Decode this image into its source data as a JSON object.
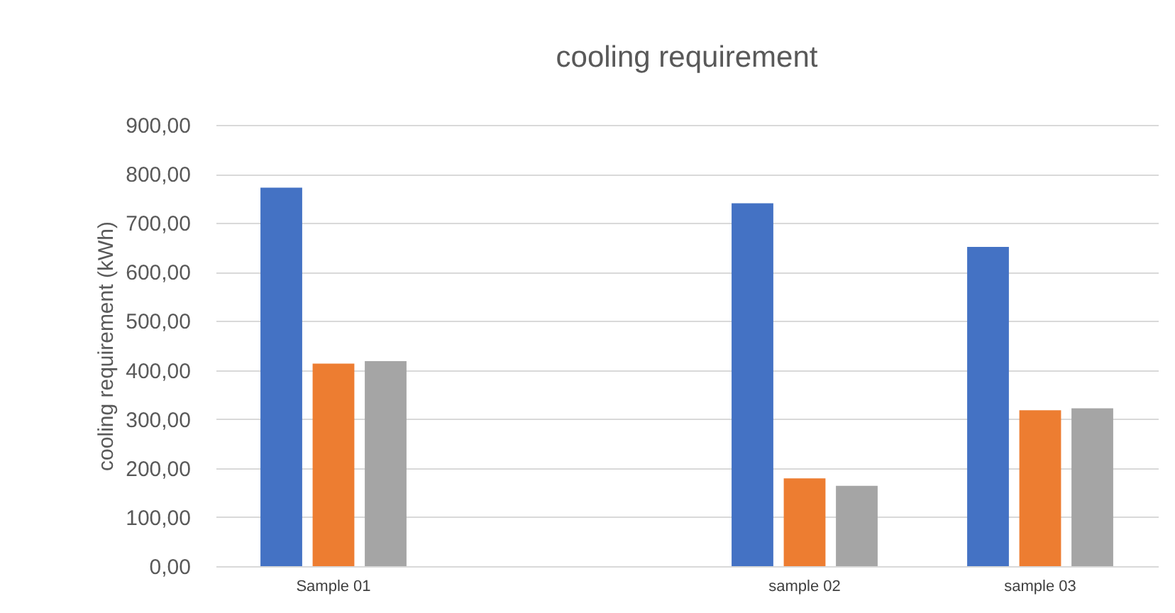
{
  "chart_data": {
    "type": "bar",
    "title": "cooling requirement",
    "ylabel": "cooling requirement  (kWh)",
    "categories": [
      "Sample 01",
      null,
      "sample 02",
      "sample 03"
    ],
    "series": [
      {
        "color": "#4472c4",
        "values": [
          772,
          null,
          740,
          651
        ]
      },
      {
        "color": "#ed7d31",
        "values": [
          413,
          null,
          179,
          318
        ]
      },
      {
        "color": "#a5a5a5",
        "values": [
          418,
          null,
          164,
          322
        ]
      }
    ],
    "ylim": [
      0,
      900
    ],
    "yticks": [
      {
        "value": 0,
        "label": "0,00"
      },
      {
        "value": 100,
        "label": "100,00"
      },
      {
        "value": 200,
        "label": "200,00"
      },
      {
        "value": 300,
        "label": "300,00"
      },
      {
        "value": 400,
        "label": "400,00"
      },
      {
        "value": 500,
        "label": "500,00"
      },
      {
        "value": 600,
        "label": "600,00"
      },
      {
        "value": 700,
        "label": "700,00"
      },
      {
        "value": 800,
        "label": "800,00"
      },
      {
        "value": 900,
        "label": "900,00"
      }
    ],
    "grid": "y",
    "legend": false
  }
}
